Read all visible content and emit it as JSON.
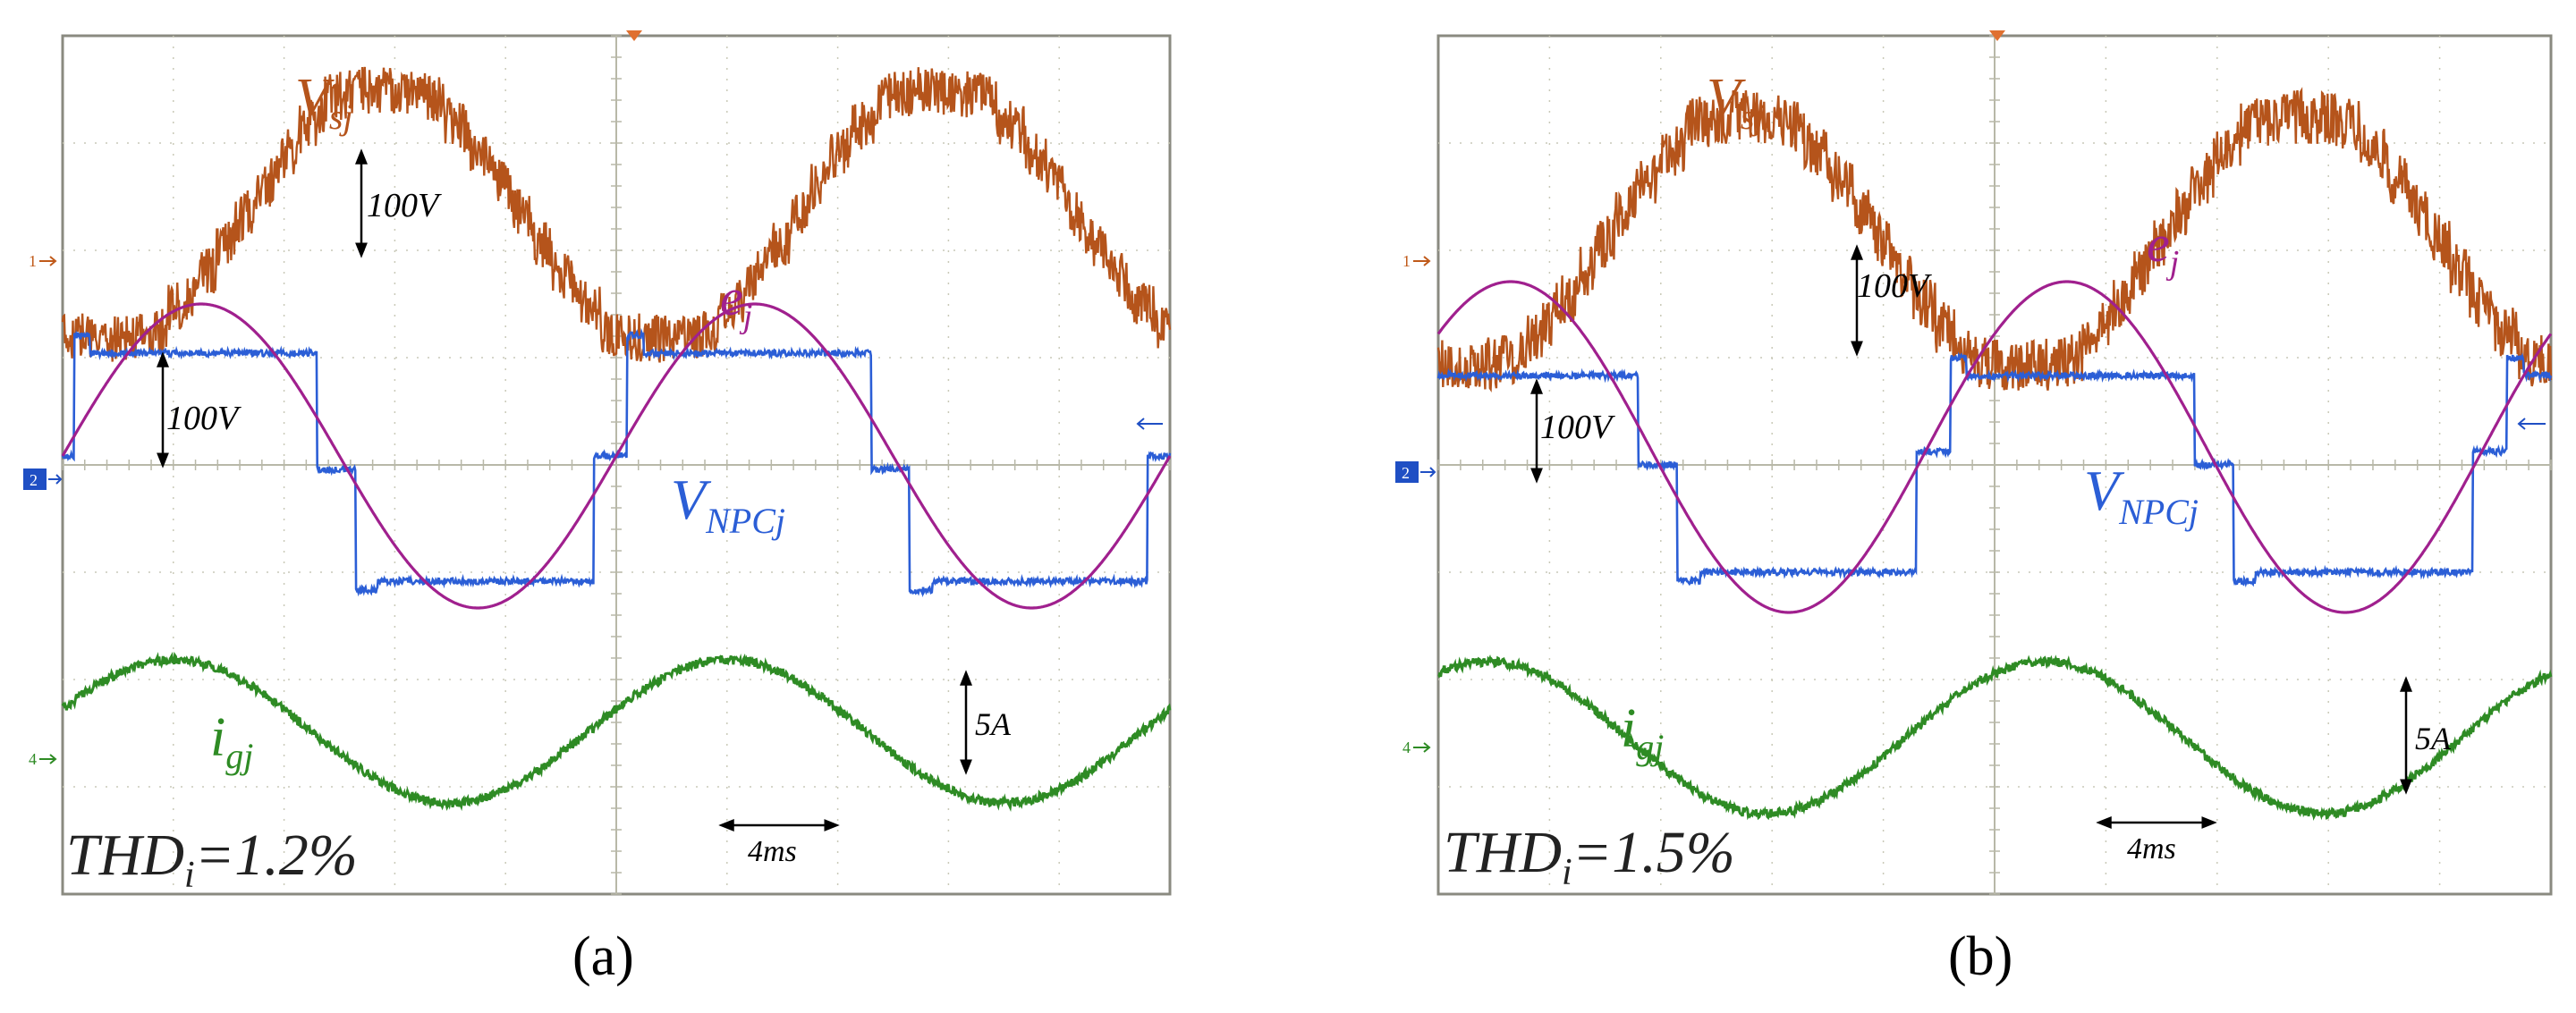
{
  "figure": {
    "panels": [
      {
        "id": "a",
        "caption": "(a)",
        "thd_value": "THD",
        "thd_sub": "i",
        "thd_rest": "=1.2%",
        "grid": {
          "divisions_x": 10,
          "divisions_y": 8
        },
        "header_text": [
          "",
          "",
          ""
        ],
        "channel_markers": [
          "1",
          "2",
          "4"
        ],
        "scale_vsj": "100V",
        "scale_vnpc": "100V",
        "scale_current": "5A",
        "time_scale": "4ms",
        "labels": {
          "vsj": {
            "main": "V",
            "sub": "sj"
          },
          "ej": {
            "main": "e",
            "sub": "j"
          },
          "vnpc": {
            "main": "V",
            "sub": "NPCj"
          },
          "igj": {
            "main": "i",
            "sub": "gj"
          }
        }
      },
      {
        "id": "b",
        "caption": "(b)",
        "thd_value": "THD",
        "thd_sub": "i",
        "thd_rest": "=1.5%",
        "grid": {
          "divisions_x": 10,
          "divisions_y": 8
        },
        "header_text": [
          "",
          "",
          ""
        ],
        "channel_markers": [
          "1",
          "2",
          "4"
        ],
        "scale_vsj": "100V",
        "scale_vnpc": "100V",
        "scale_current": "5A",
        "time_scale": "4ms",
        "labels": {
          "vsj": {
            "main": "V",
            "sub": "sj"
          },
          "ej": {
            "main": "e",
            "sub": "j"
          },
          "vnpc": {
            "main": "V",
            "sub": "NPCj"
          },
          "igj": {
            "main": "i",
            "sub": "gj"
          }
        }
      }
    ],
    "colors": {
      "vsj": "#b5541b",
      "ej": "#a0208e",
      "vnpc": "#2b5ed6",
      "igj": "#2e8b24",
      "grid": "#c9c9b8",
      "frame": "#8a8a80",
      "marker1": "#c05a1a",
      "marker2": "#1f4fc4",
      "marker4": "#2e8b24",
      "trigger": "#e07030"
    }
  },
  "chart_data": [
    {
      "type": "line",
      "title": "(a)",
      "time_per_division_ms": 4,
      "x_range_ms": [
        0,
        40
      ],
      "series": [
        {
          "name": "V_sj",
          "shape": "staircase sine with switching ripple",
          "cycles": 2,
          "scale_per_div": "100V"
        },
        {
          "name": "e_j",
          "shape": "sine",
          "cycles": 2,
          "scale_per_div": "100V"
        },
        {
          "name": "V_NPCj",
          "shape": "3-level quasi-square",
          "cycles": 2,
          "scale_per_div": "100V"
        },
        {
          "name": "i_gj",
          "shape": "sine",
          "cycles": 2,
          "scale_per_div": "5A"
        }
      ],
      "annotations": [
        "THD_i=1.2%",
        "100V",
        "100V",
        "5A",
        "4ms"
      ]
    },
    {
      "type": "line",
      "title": "(b)",
      "time_per_division_ms": 4,
      "x_range_ms": [
        0,
        40
      ],
      "series": [
        {
          "name": "V_sj",
          "shape": "staircase sine with switching ripple",
          "cycles": 2,
          "scale_per_div": "100V"
        },
        {
          "name": "e_j",
          "shape": "sine",
          "cycles": 2,
          "scale_per_div": "100V"
        },
        {
          "name": "V_NPCj",
          "shape": "3-level quasi-square",
          "cycles": 2,
          "scale_per_div": "100V"
        },
        {
          "name": "i_gj",
          "shape": "sine",
          "cycles": 2,
          "scale_per_div": "5A"
        }
      ],
      "annotations": [
        "THD_i=1.5%",
        "100V",
        "100V",
        "5A",
        "4ms"
      ]
    }
  ]
}
